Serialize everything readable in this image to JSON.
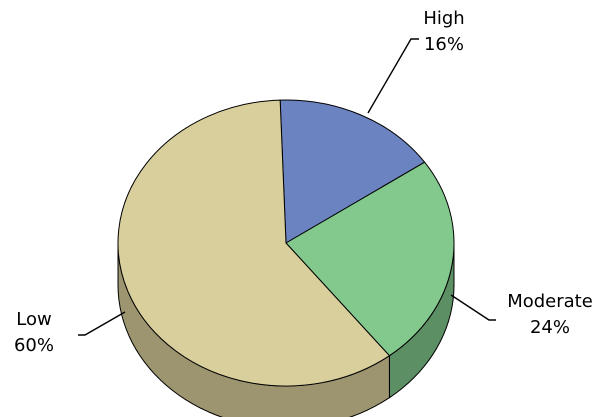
{
  "chart_data": {
    "type": "pie",
    "title": "",
    "style": "3d",
    "slices": [
      {
        "label": "High",
        "value": 16,
        "display": "16%",
        "color": "#6b84c1",
        "side_color": "#4d5f8e"
      },
      {
        "label": "Moderate",
        "value": 24,
        "display": "24%",
        "color": "#83c98d",
        "side_color": "#5c8f64"
      },
      {
        "label": "Low",
        "value": 60,
        "display": "60%",
        "color": "#d9cf9d",
        "side_color": "#9c9570"
      }
    ]
  }
}
